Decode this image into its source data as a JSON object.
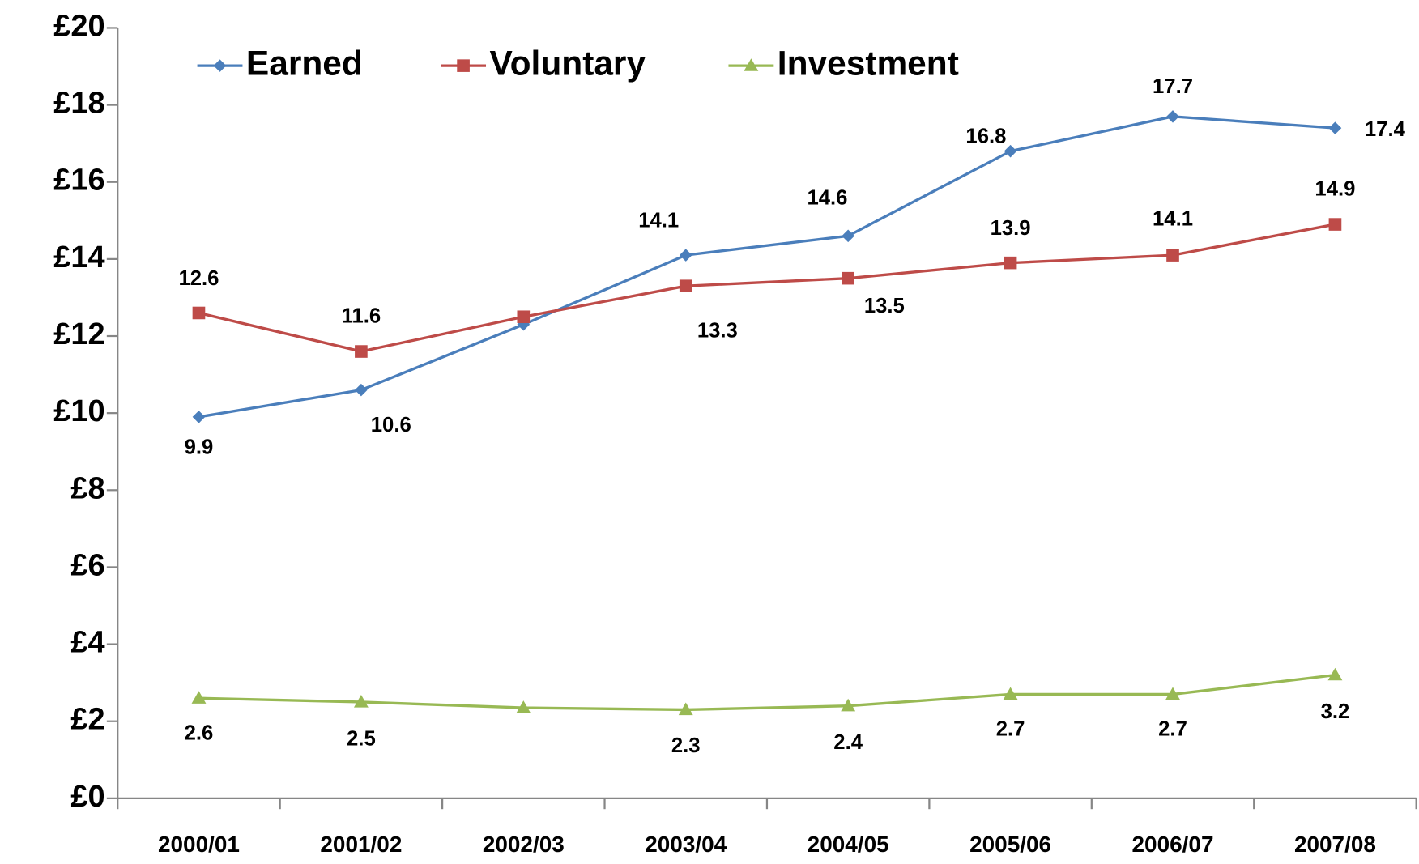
{
  "chart_data": {
    "type": "line",
    "categories": [
      "2000/01",
      "2001/02",
      "2002/03",
      "2003/04",
      "2004/05",
      "2005/06",
      "2006/07",
      "2007/08"
    ],
    "series": [
      {
        "name": "Earned",
        "color": "#4a7ebb",
        "marker": "diamond",
        "values": [
          9.9,
          10.6,
          12.3,
          14.1,
          14.6,
          16.8,
          17.7,
          17.4
        ],
        "value_labels": [
          "9.9",
          "10.6",
          null,
          "14.1",
          "14.6",
          "16.8",
          "17.7",
          "17.4"
        ]
      },
      {
        "name": "Voluntary",
        "color": "#be4b48",
        "marker": "square",
        "values": [
          12.6,
          11.6,
          12.5,
          13.3,
          13.5,
          13.9,
          14.1,
          14.9
        ],
        "value_labels": [
          "12.6",
          "11.6",
          null,
          "13.3",
          "13.5",
          "13.9",
          "14.1",
          "14.9"
        ]
      },
      {
        "name": "Investment",
        "color": "#98b954",
        "marker": "triangle",
        "values": [
          2.6,
          2.5,
          2.35,
          2.3,
          2.4,
          2.7,
          2.7,
          3.2
        ],
        "value_labels": [
          "2.6",
          "2.5",
          null,
          "2.3",
          "2.4",
          "2.7",
          "2.7",
          "3.2"
        ]
      }
    ],
    "ylim": [
      0,
      20
    ],
    "yticks": [
      {
        "value": 0,
        "label": "£0"
      },
      {
        "value": 2,
        "label": "£2"
      },
      {
        "value": 4,
        "label": "£4"
      },
      {
        "value": 6,
        "label": "£6"
      },
      {
        "value": 8,
        "label": "£8"
      },
      {
        "value": 10,
        "label": "£10"
      },
      {
        "value": 12,
        "label": "£12"
      },
      {
        "value": 14,
        "label": "£14"
      },
      {
        "value": 16,
        "label": "£16"
      },
      {
        "value": 18,
        "label": "£18"
      },
      {
        "value": 20,
        "label": "£20"
      }
    ],
    "grid": false,
    "legend": "top"
  }
}
